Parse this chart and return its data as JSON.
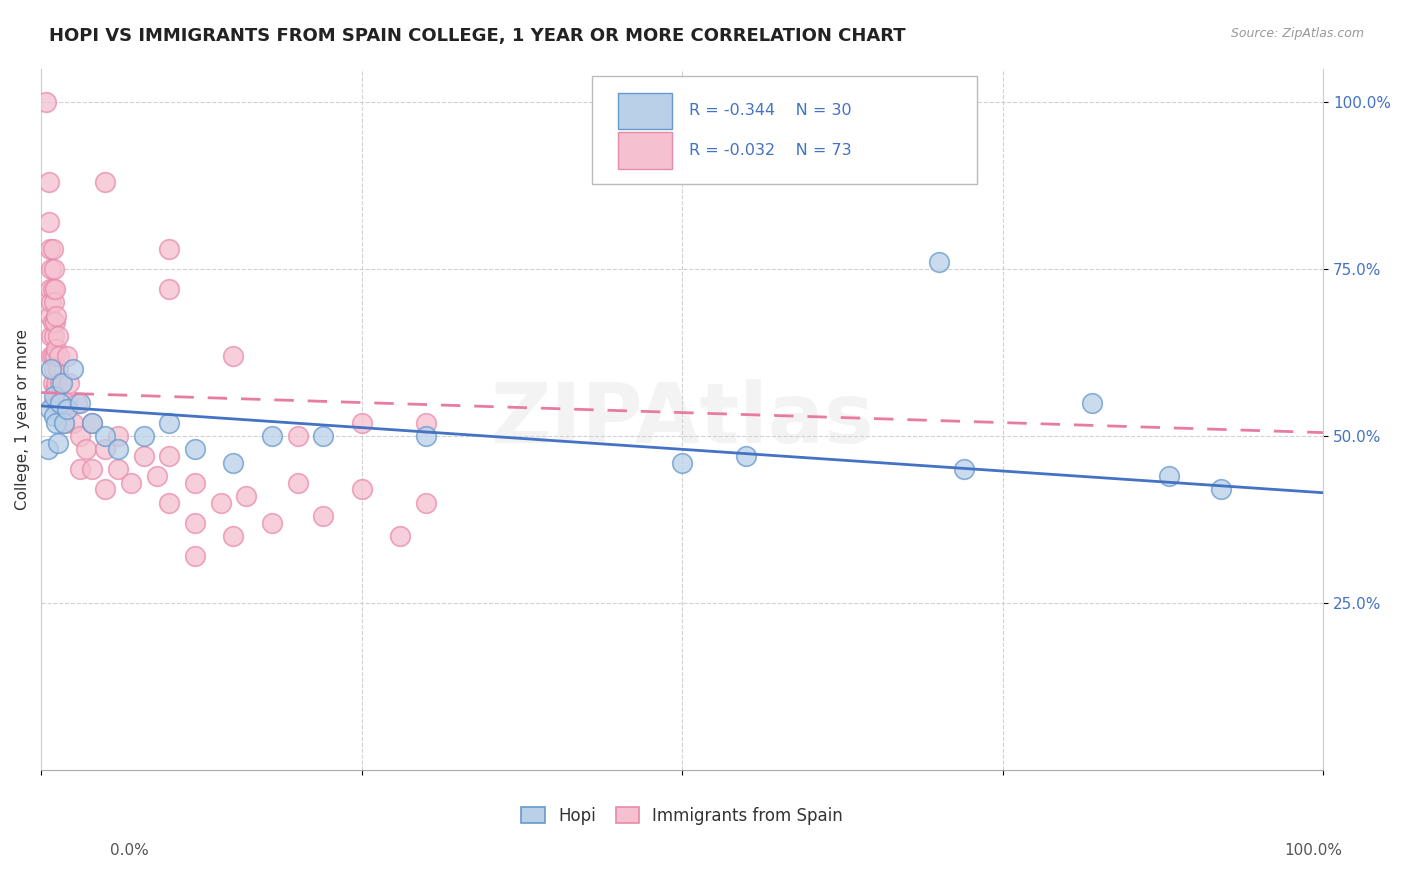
{
  "title": "HOPI VS IMMIGRANTS FROM SPAIN COLLEGE, 1 YEAR OR MORE CORRELATION CHART",
  "source": "Source: ZipAtlas.com",
  "ylabel": "College, 1 year or more",
  "xlim": [
    0.0,
    1.0
  ],
  "ylim": [
    0.0,
    1.05
  ],
  "xtick_vals": [
    0.0,
    0.25,
    0.5,
    0.75,
    1.0
  ],
  "ytick_labels": [
    "25.0%",
    "50.0%",
    "75.0%",
    "100.0%"
  ],
  "ytick_vals": [
    0.25,
    0.5,
    0.75,
    1.0
  ],
  "hopi_color": "#b8d0e8",
  "spain_color": "#f5c0d0",
  "hopi_edge": "#6699cc",
  "spain_edge": "#e88aaa",
  "trendline_hopi_color": "#4472c4",
  "trendline_spain_color": "#e87ba0",
  "hopi_trend": [
    0.545,
    0.415
  ],
  "spain_trend": [
    0.565,
    0.505
  ],
  "hopi_points": [
    [
      0.005,
      0.48
    ],
    [
      0.007,
      0.54
    ],
    [
      0.008,
      0.6
    ],
    [
      0.01,
      0.53
    ],
    [
      0.01,
      0.56
    ],
    [
      0.012,
      0.52
    ],
    [
      0.013,
      0.49
    ],
    [
      0.015,
      0.55
    ],
    [
      0.016,
      0.58
    ],
    [
      0.018,
      0.52
    ],
    [
      0.02,
      0.54
    ],
    [
      0.025,
      0.6
    ],
    [
      0.03,
      0.55
    ],
    [
      0.04,
      0.52
    ],
    [
      0.05,
      0.5
    ],
    [
      0.06,
      0.48
    ],
    [
      0.08,
      0.5
    ],
    [
      0.1,
      0.52
    ],
    [
      0.12,
      0.48
    ],
    [
      0.15,
      0.46
    ],
    [
      0.18,
      0.5
    ],
    [
      0.22,
      0.5
    ],
    [
      0.3,
      0.5
    ],
    [
      0.5,
      0.46
    ],
    [
      0.55,
      0.47
    ],
    [
      0.7,
      0.76
    ],
    [
      0.72,
      0.45
    ],
    [
      0.82,
      0.55
    ],
    [
      0.88,
      0.44
    ],
    [
      0.92,
      0.42
    ]
  ],
  "spain_points": [
    [
      0.004,
      1.0
    ],
    [
      0.006,
      0.88
    ],
    [
      0.006,
      0.82
    ],
    [
      0.007,
      0.78
    ],
    [
      0.007,
      0.72
    ],
    [
      0.007,
      0.68
    ],
    [
      0.008,
      0.75
    ],
    [
      0.008,
      0.7
    ],
    [
      0.008,
      0.65
    ],
    [
      0.008,
      0.62
    ],
    [
      0.009,
      0.78
    ],
    [
      0.009,
      0.72
    ],
    [
      0.009,
      0.67
    ],
    [
      0.009,
      0.62
    ],
    [
      0.009,
      0.58
    ],
    [
      0.01,
      0.75
    ],
    [
      0.01,
      0.7
    ],
    [
      0.01,
      0.65
    ],
    [
      0.01,
      0.6
    ],
    [
      0.01,
      0.55
    ],
    [
      0.011,
      0.72
    ],
    [
      0.011,
      0.67
    ],
    [
      0.011,
      0.62
    ],
    [
      0.011,
      0.57
    ],
    [
      0.012,
      0.68
    ],
    [
      0.012,
      0.63
    ],
    [
      0.012,
      0.58
    ],
    [
      0.013,
      0.65
    ],
    [
      0.013,
      0.6
    ],
    [
      0.013,
      0.55
    ],
    [
      0.014,
      0.62
    ],
    [
      0.015,
      0.58
    ],
    [
      0.016,
      0.55
    ],
    [
      0.018,
      0.52
    ],
    [
      0.02,
      0.62
    ],
    [
      0.02,
      0.55
    ],
    [
      0.022,
      0.58
    ],
    [
      0.025,
      0.52
    ],
    [
      0.028,
      0.55
    ],
    [
      0.03,
      0.5
    ],
    [
      0.03,
      0.45
    ],
    [
      0.035,
      0.48
    ],
    [
      0.04,
      0.52
    ],
    [
      0.04,
      0.45
    ],
    [
      0.05,
      0.48
    ],
    [
      0.05,
      0.42
    ],
    [
      0.06,
      0.45
    ],
    [
      0.06,
      0.5
    ],
    [
      0.07,
      0.43
    ],
    [
      0.08,
      0.47
    ],
    [
      0.09,
      0.44
    ],
    [
      0.1,
      0.47
    ],
    [
      0.1,
      0.4
    ],
    [
      0.12,
      0.43
    ],
    [
      0.12,
      0.37
    ],
    [
      0.12,
      0.32
    ],
    [
      0.14,
      0.4
    ],
    [
      0.15,
      0.35
    ],
    [
      0.16,
      0.41
    ],
    [
      0.18,
      0.37
    ],
    [
      0.2,
      0.5
    ],
    [
      0.2,
      0.43
    ],
    [
      0.22,
      0.38
    ],
    [
      0.25,
      0.52
    ],
    [
      0.25,
      0.42
    ],
    [
      0.28,
      0.35
    ],
    [
      0.3,
      0.52
    ],
    [
      0.3,
      0.4
    ],
    [
      0.05,
      0.88
    ],
    [
      0.1,
      0.72
    ],
    [
      0.1,
      0.78
    ],
    [
      0.15,
      0.62
    ]
  ]
}
